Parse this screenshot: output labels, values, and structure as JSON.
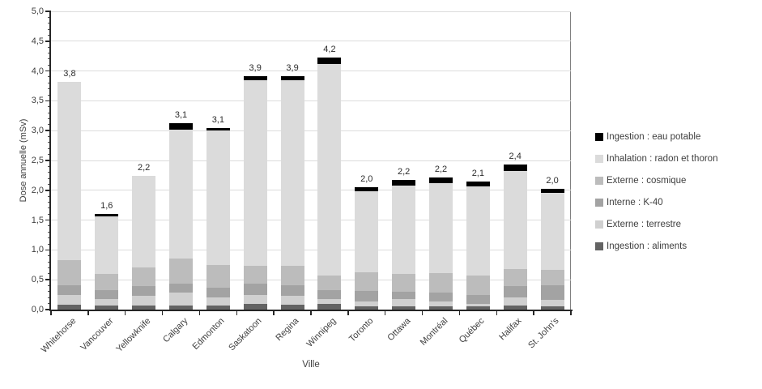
{
  "chart_data": {
    "type": "bar",
    "stacked": true,
    "xlabel": "Ville",
    "ylabel": "Dose annuelle (mSv)",
    "ylim": [
      0,
      5
    ],
    "ytick_step": 0.5,
    "minor_tick_step": 0.1,
    "grid": true,
    "legend_position": "right",
    "decimal_separator": ",",
    "ytick_labels": [
      "0,0",
      "0,5",
      "1,0",
      "1,5",
      "2,0",
      "2,5",
      "3,0",
      "3,5",
      "4,0",
      "4,5",
      "5,0"
    ],
    "categories": [
      "Whitehorse",
      "Vancouver",
      "Yellowknife",
      "Calgary",
      "Edmonton",
      "Saskatoon",
      "Regina",
      "Winnipeg",
      "Toronto",
      "Ottawa",
      "Montréal",
      "Québec",
      "Halifax",
      "St. John's"
    ],
    "value_labels": [
      "3,8",
      "1,6",
      "2,2",
      "3,1",
      "3,1",
      "3,9",
      "3,9",
      "4,2",
      "2,0",
      "2,2",
      "2,2",
      "2,1",
      "2,4",
      "2,0"
    ],
    "totals": [
      3.82,
      1.6,
      2.24,
      3.12,
      3.05,
      3.91,
      3.91,
      4.22,
      2.05,
      2.17,
      2.22,
      2.15,
      2.43,
      2.03
    ],
    "series": [
      {
        "name": "Ingestion : aliments",
        "color": "#636363",
        "values": [
          0.08,
          0.07,
          0.07,
          0.07,
          0.07,
          0.09,
          0.08,
          0.09,
          0.06,
          0.06,
          0.06,
          0.05,
          0.07,
          0.06
        ]
      },
      {
        "name": "Externe : terrestre",
        "color": "#d0d0d0",
        "values": [
          0.16,
          0.11,
          0.16,
          0.21,
          0.13,
          0.15,
          0.15,
          0.09,
          0.08,
          0.11,
          0.08,
          0.05,
          0.13,
          0.1
        ]
      },
      {
        "name": "Interne : K-40",
        "color": "#a3a3a3",
        "values": [
          0.17,
          0.15,
          0.17,
          0.16,
          0.17,
          0.19,
          0.18,
          0.14,
          0.17,
          0.13,
          0.15,
          0.15,
          0.19,
          0.25
        ]
      },
      {
        "name": "Externe : cosmique",
        "color": "#bcbcbc",
        "values": [
          0.42,
          0.27,
          0.3,
          0.41,
          0.38,
          0.3,
          0.32,
          0.25,
          0.31,
          0.3,
          0.32,
          0.32,
          0.29,
          0.25
        ]
      },
      {
        "name": "Inhalation : radon et thoron",
        "color": "#dbdbdb",
        "values": [
          2.99,
          0.96,
          1.54,
          2.17,
          2.25,
          3.11,
          3.11,
          3.55,
          1.36,
          1.48,
          1.51,
          1.5,
          1.64,
          1.29
        ]
      },
      {
        "name": "Ingestion : eau potable",
        "color": "#000000",
        "values": [
          0.0,
          0.04,
          0.0,
          0.1,
          0.05,
          0.07,
          0.07,
          0.1,
          0.07,
          0.09,
          0.1,
          0.08,
          0.11,
          0.08
        ]
      }
    ],
    "legend": [
      {
        "label": "Ingestion : eau potable",
        "color": "#000000"
      },
      {
        "label": "Inhalation : radon et thoron",
        "color": "#dbdbdb"
      },
      {
        "label": "Externe : cosmique",
        "color": "#bcbcbc"
      },
      {
        "label": "Interne : K-40",
        "color": "#a3a3a3"
      },
      {
        "label": "Externe : terrestre",
        "color": "#d0d0d0"
      },
      {
        "label": "Ingestion : aliments",
        "color": "#636363"
      }
    ]
  }
}
